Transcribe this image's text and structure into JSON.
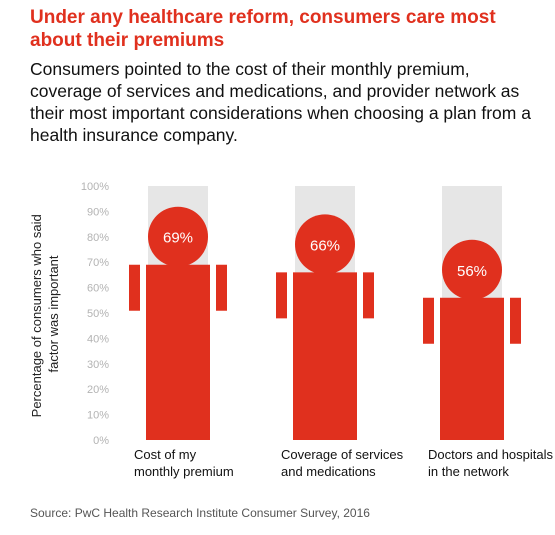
{
  "header": {
    "title": "Under any healthcare reform, consumers care most about their premiums",
    "subtitle": "Consumers pointed to the cost of their monthly premium, coverage of services and medications, and provider network as their most important considerations when choosing a plan from a health insurance company."
  },
  "footer": {
    "source": "Source: PwC Health Research Institute Consumer Survey, 2016"
  },
  "colors": {
    "accent": "#e0301e",
    "track": "#e6e6e6",
    "tick": "#b3b3b3"
  },
  "chart_data": {
    "type": "bar",
    "ylabel": "Percentage of consumers who said factor was important",
    "ylim": [
      0,
      100
    ],
    "yticks": [
      "0%",
      "10%",
      "20%",
      "30%",
      "40%",
      "50%",
      "60%",
      "70%",
      "80%",
      "90%",
      "100%"
    ],
    "categories": [
      [
        "Cost of my",
        "monthly premium"
      ],
      [
        "Coverage of services",
        "and medications"
      ],
      [
        "Doctors and hospitals",
        "in the network"
      ]
    ],
    "values": [
      69,
      66,
      56
    ],
    "data_labels": [
      "69%",
      "66%",
      "56%"
    ],
    "grid": false
  }
}
